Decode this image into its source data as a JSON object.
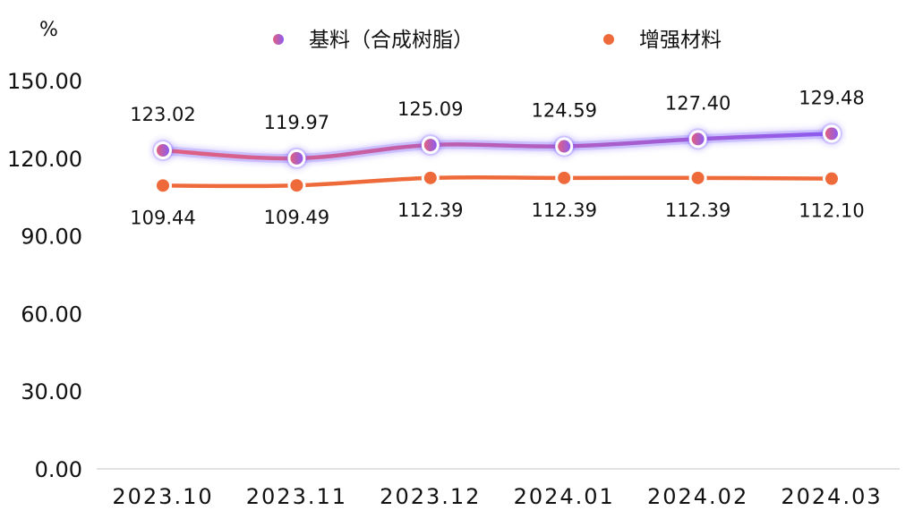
{
  "chart_data": {
    "type": "line",
    "title": "",
    "xlabel": "",
    "ylabel": "%",
    "ylim": [
      0,
      150
    ],
    "yticks": [
      "0.00",
      "30.00",
      "60.00",
      "90.00",
      "120.00",
      "150.00"
    ],
    "categories": [
      "2023.10",
      "2023.11",
      "2023.12",
      "2024.01",
      "2024.02",
      "2024.03"
    ],
    "legend_position": "top-center",
    "grid": false,
    "series": [
      {
        "name": "基料（合成树脂）",
        "values": [
          123.02,
          119.97,
          125.09,
          124.59,
          127.4,
          129.48
        ],
        "labels": [
          "123.02",
          "119.97",
          "125.09",
          "124.59",
          "127.40",
          "129.48"
        ],
        "label_side": "above",
        "color_start": "#e0607f",
        "color_end": "#8e5cf0",
        "glow": "#6a4cff"
      },
      {
        "name": "增强材料",
        "values": [
          109.44,
          109.49,
          112.39,
          112.39,
          112.39,
          112.1
        ],
        "labels": [
          "109.44",
          "109.49",
          "112.39",
          "112.39",
          "112.39",
          "112.10"
        ],
        "label_side": "below",
        "color_start": "#ee6a3a",
        "color_end": "#ee6a3a",
        "glow": "#ffffff"
      }
    ]
  }
}
